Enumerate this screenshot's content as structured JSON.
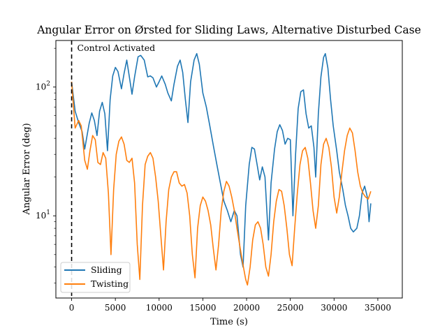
{
  "chart_data": {
    "type": "line",
    "title": "Angular Error on Ørsted for Sliding Laws, Alternative Disturbed Case",
    "xlabel": "Time (s)",
    "ylabel": "Angular Error (deg)",
    "xlim": [
      -1800,
      37800
    ],
    "ylim": [
      2.3,
      230
    ],
    "yscale": "log",
    "x_ticks": [
      0,
      5000,
      10000,
      15000,
      20000,
      25000,
      30000,
      35000
    ],
    "x_tick_labels": [
      "0",
      "5000",
      "10000",
      "15000",
      "20000",
      "25000",
      "30000",
      "35000"
    ],
    "y_ticks": [
      10,
      100
    ],
    "y_tick_labels": [
      "10¹",
      "10²"
    ],
    "legend_position": "lower-left",
    "annotation": {
      "text": "Control Activated",
      "x": 0
    },
    "series": [
      {
        "name": "Sliding",
        "color": "#1f77b4",
        "points": [
          [
            0,
            110
          ],
          [
            400,
            65
          ],
          [
            800,
            53
          ],
          [
            1200,
            45
          ],
          [
            1500,
            33
          ],
          [
            2000,
            52
          ],
          [
            2300,
            63
          ],
          [
            2600,
            55
          ],
          [
            2900,
            42
          ],
          [
            3200,
            65
          ],
          [
            3500,
            76
          ],
          [
            3800,
            62
          ],
          [
            4100,
            32
          ],
          [
            4400,
            80
          ],
          [
            4700,
            122
          ],
          [
            5000,
            142
          ],
          [
            5300,
            132
          ],
          [
            5700,
            97
          ],
          [
            6000,
            128
          ],
          [
            6300,
            162
          ],
          [
            6600,
            120
          ],
          [
            6900,
            88
          ],
          [
            7200,
            120
          ],
          [
            7600,
            172
          ],
          [
            7900,
            176
          ],
          [
            8300,
            162
          ],
          [
            8700,
            120
          ],
          [
            9000,
            122
          ],
          [
            9300,
            118
          ],
          [
            9700,
            100
          ],
          [
            10000,
            110
          ],
          [
            10300,
            122
          ],
          [
            10700,
            105
          ],
          [
            11000,
            90
          ],
          [
            11400,
            78
          ],
          [
            11700,
            105
          ],
          [
            12100,
            145
          ],
          [
            12400,
            162
          ],
          [
            12700,
            130
          ],
          [
            13000,
            80
          ],
          [
            13300,
            53
          ],
          [
            13600,
            110
          ],
          [
            14000,
            162
          ],
          [
            14300,
            182
          ],
          [
            14600,
            150
          ],
          [
            15000,
            90
          ],
          [
            15400,
            70
          ],
          [
            15800,
            50
          ],
          [
            16200,
            35
          ],
          [
            16600,
            25
          ],
          [
            17000,
            18
          ],
          [
            17400,
            13
          ],
          [
            17800,
            11
          ],
          [
            18200,
            9
          ],
          [
            18600,
            11
          ],
          [
            18900,
            10
          ],
          [
            19300,
            5
          ],
          [
            19600,
            4
          ],
          [
            19900,
            12
          ],
          [
            20300,
            25
          ],
          [
            20600,
            34
          ],
          [
            20900,
            33
          ],
          [
            21200,
            25
          ],
          [
            21500,
            19
          ],
          [
            21800,
            24
          ],
          [
            22100,
            20
          ],
          [
            22500,
            6.5
          ],
          [
            22800,
            18
          ],
          [
            23200,
            33
          ],
          [
            23500,
            45
          ],
          [
            23800,
            51
          ],
          [
            24100,
            46
          ],
          [
            24400,
            36
          ],
          [
            24700,
            40
          ],
          [
            25000,
            39
          ],
          [
            25300,
            10
          ],
          [
            25600,
            30
          ],
          [
            25900,
            68
          ],
          [
            26200,
            92
          ],
          [
            26500,
            95
          ],
          [
            26800,
            62
          ],
          [
            27100,
            48
          ],
          [
            27400,
            50
          ],
          [
            27700,
            34
          ],
          [
            27900,
            20
          ],
          [
            28200,
            62
          ],
          [
            28500,
            120
          ],
          [
            28800,
            170
          ],
          [
            29000,
            182
          ],
          [
            29300,
            140
          ],
          [
            29600,
            80
          ],
          [
            29900,
            50
          ],
          [
            30300,
            32
          ],
          [
            30600,
            22
          ],
          [
            31000,
            16
          ],
          [
            31300,
            12
          ],
          [
            31600,
            10
          ],
          [
            31900,
            8
          ],
          [
            32200,
            7.5
          ],
          [
            32600,
            8
          ],
          [
            32900,
            10
          ],
          [
            33200,
            15
          ],
          [
            33500,
            17
          ],
          [
            33800,
            14
          ],
          [
            34000,
            9
          ],
          [
            34200,
            12.5
          ]
        ]
      },
      {
        "name": "Twisting",
        "color": "#ff7f0e",
        "points": [
          [
            0,
            110
          ],
          [
            400,
            48
          ],
          [
            800,
            55
          ],
          [
            1100,
            50
          ],
          [
            1500,
            27
          ],
          [
            1800,
            23
          ],
          [
            2100,
            32
          ],
          [
            2400,
            42
          ],
          [
            2700,
            39
          ],
          [
            3000,
            26
          ],
          [
            3300,
            25
          ],
          [
            3600,
            31
          ],
          [
            3900,
            28
          ],
          [
            4200,
            15
          ],
          [
            4500,
            5
          ],
          [
            4800,
            16
          ],
          [
            5100,
            30
          ],
          [
            5400,
            38
          ],
          [
            5700,
            41
          ],
          [
            6000,
            36
          ],
          [
            6300,
            27
          ],
          [
            6600,
            26
          ],
          [
            6900,
            28
          ],
          [
            7200,
            18
          ],
          [
            7500,
            6
          ],
          [
            7800,
            3.2
          ],
          [
            8100,
            12
          ],
          [
            8400,
            25
          ],
          [
            8700,
            29
          ],
          [
            9000,
            31
          ],
          [
            9300,
            28
          ],
          [
            9600,
            20
          ],
          [
            9900,
            13
          ],
          [
            10200,
            7
          ],
          [
            10500,
            3.8
          ],
          [
            10800,
            9
          ],
          [
            11100,
            16
          ],
          [
            11400,
            20
          ],
          [
            11700,
            22
          ],
          [
            12000,
            22
          ],
          [
            12300,
            18
          ],
          [
            12600,
            17
          ],
          [
            12900,
            17.5
          ],
          [
            13200,
            15
          ],
          [
            13500,
            10
          ],
          [
            13800,
            5
          ],
          [
            14100,
            3.3
          ],
          [
            14400,
            8
          ],
          [
            14700,
            12
          ],
          [
            15000,
            14
          ],
          [
            15300,
            13
          ],
          [
            15600,
            11
          ],
          [
            15900,
            8.5
          ],
          [
            16200,
            5.5
          ],
          [
            16500,
            3.8
          ],
          [
            16800,
            6
          ],
          [
            17100,
            11
          ],
          [
            17400,
            15.5
          ],
          [
            17700,
            18.5
          ],
          [
            18000,
            17
          ],
          [
            18300,
            14
          ],
          [
            18600,
            11
          ],
          [
            18900,
            8
          ],
          [
            19200,
            6
          ],
          [
            19500,
            4.5
          ],
          [
            19900,
            3.2
          ],
          [
            20100,
            2.9
          ],
          [
            20400,
            4
          ],
          [
            20700,
            6.5
          ],
          [
            21000,
            8.5
          ],
          [
            21300,
            9
          ],
          [
            21600,
            8
          ],
          [
            21900,
            6
          ],
          [
            22200,
            4
          ],
          [
            22500,
            3.4
          ],
          [
            22800,
            5
          ],
          [
            23100,
            9
          ],
          [
            23400,
            13
          ],
          [
            23700,
            16
          ],
          [
            24000,
            15.5
          ],
          [
            24300,
            12
          ],
          [
            24600,
            8
          ],
          [
            24900,
            5
          ],
          [
            25200,
            4.1
          ],
          [
            25500,
            8
          ],
          [
            25800,
            15
          ],
          [
            26100,
            25
          ],
          [
            26400,
            32
          ],
          [
            26700,
            34
          ],
          [
            27000,
            28
          ],
          [
            27300,
            18
          ],
          [
            27600,
            11
          ],
          [
            27900,
            8
          ],
          [
            28200,
            12
          ],
          [
            28500,
            25
          ],
          [
            28800,
            36
          ],
          [
            29100,
            40
          ],
          [
            29400,
            34
          ],
          [
            29700,
            24
          ],
          [
            30000,
            14
          ],
          [
            30300,
            10.5
          ],
          [
            30600,
            14
          ],
          [
            30900,
            22
          ],
          [
            31200,
            32
          ],
          [
            31500,
            42
          ],
          [
            31800,
            48
          ],
          [
            32100,
            44
          ],
          [
            32400,
            32
          ],
          [
            32700,
            22
          ],
          [
            33000,
            17
          ],
          [
            33300,
            15
          ],
          [
            33600,
            14
          ],
          [
            33900,
            13.5
          ],
          [
            34200,
            15.5
          ]
        ]
      }
    ]
  }
}
